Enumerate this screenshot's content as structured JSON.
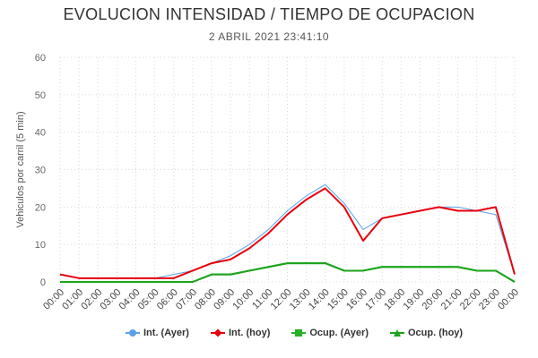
{
  "chart_data": {
    "type": "line",
    "title": "EVOLUCION INTENSIDAD / TIEMPO DE OCUPACION",
    "subtitle": "2 ABRIL 2021 23:41:10",
    "ylabel": "Vehiculos por carril (5 min)",
    "xlabel": "",
    "ylim": [
      0,
      60
    ],
    "yticks": [
      "0",
      "10",
      "20",
      "30",
      "40",
      "50",
      "60"
    ],
    "categories": [
      "00:00",
      "01:00",
      "02:00",
      "03:00",
      "04:00",
      "05:00",
      "06:00",
      "07:00",
      "08:00",
      "09:00",
      "10:00",
      "11:00",
      "12:00",
      "13:00",
      "14:00",
      "15:00",
      "16:00",
      "17:00",
      "18:00",
      "19:00",
      "20:00",
      "21:00",
      "22:00",
      "23:00",
      "00:00"
    ],
    "grid": true,
    "legend_position": "bottom",
    "series": [
      {
        "name": "Int. (Ayer)",
        "color": "#5aa0ea",
        "marker": "circle",
        "values": [
          2,
          1,
          1,
          1,
          1,
          1,
          2,
          3,
          5,
          7,
          10,
          14,
          19,
          23,
          26,
          21,
          14,
          17,
          18,
          19,
          20,
          20,
          19,
          18,
          2
        ]
      },
      {
        "name": "Int. (hoy)",
        "color": "#e8000b",
        "marker": "diamond",
        "values": [
          2,
          1,
          1,
          1,
          1,
          1,
          1,
          3,
          5,
          6,
          9,
          13,
          18,
          22,
          25,
          20,
          11,
          17,
          18,
          19,
          20,
          19,
          19,
          20,
          2
        ]
      },
      {
        "name": "Ocup. (Ayer)",
        "color": "#25b025",
        "marker": "square",
        "values": [
          0,
          0,
          0,
          0,
          0,
          0,
          0,
          0,
          2,
          2,
          3,
          4,
          5,
          5,
          5,
          3,
          3,
          4,
          4,
          4,
          4,
          4,
          3,
          3,
          0
        ]
      },
      {
        "name": "Ocup. (hoy)",
        "color": "#1aa31a",
        "marker": "triangle",
        "values": [
          0,
          0,
          0,
          0,
          0,
          0,
          0,
          0,
          2,
          2,
          3,
          4,
          5,
          5,
          5,
          3,
          3,
          4,
          4,
          4,
          4,
          4,
          3,
          3,
          0
        ]
      }
    ]
  }
}
